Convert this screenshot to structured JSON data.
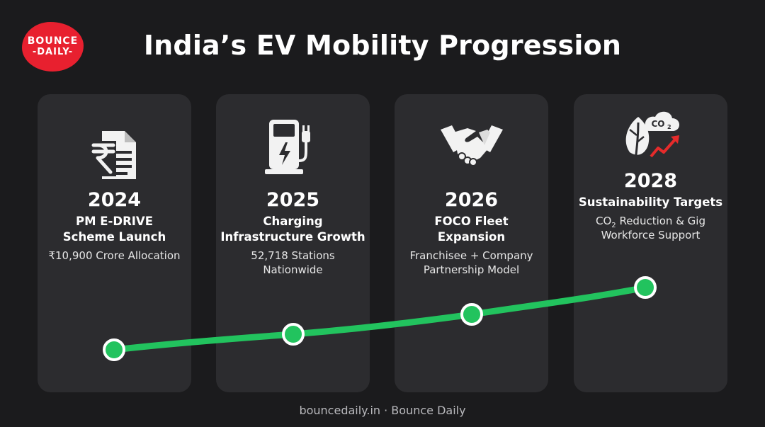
{
  "brand": {
    "line1": "BOUNCE",
    "line2": "-DAILY-"
  },
  "title": "India’s EV Mobility Progression",
  "milestones": [
    {
      "year": "2024",
      "head1": "PM E-DRIVE",
      "head2": "Scheme Launch",
      "sub1": "₹10,900 Crore Allocation",
      "sub2": "",
      "icon": "rupee-document-icon"
    },
    {
      "year": "2025",
      "head1": "Charging",
      "head2": "Infrastructure Growth",
      "sub1": "52,718 Stations",
      "sub2": "Nationwide",
      "icon": "ev-charger-icon"
    },
    {
      "year": "2026",
      "head1": "FOCO Fleet",
      "head2": "Expansion",
      "sub1": "Franchisee + Company",
      "sub2": "Partnership Model",
      "icon": "handshake-icon"
    },
    {
      "year": "2028",
      "head1": "Sustainability Targets",
      "sub1_pre": "CO",
      "sub1_subscript": "2",
      "sub1_post": " Reduction & Gig",
      "sub2": "Workforce Support",
      "icon": "leaf-co2-icon"
    }
  ],
  "icon_co2_label": "CO",
  "icon_co2_subscript": "2",
  "colors": {
    "background": "#1b1b1d",
    "card": "#2c2c2f",
    "accent_green": "#22c35e",
    "brand_red": "#e8202f"
  },
  "footer": "bouncedaily.in · Bounce Daily"
}
